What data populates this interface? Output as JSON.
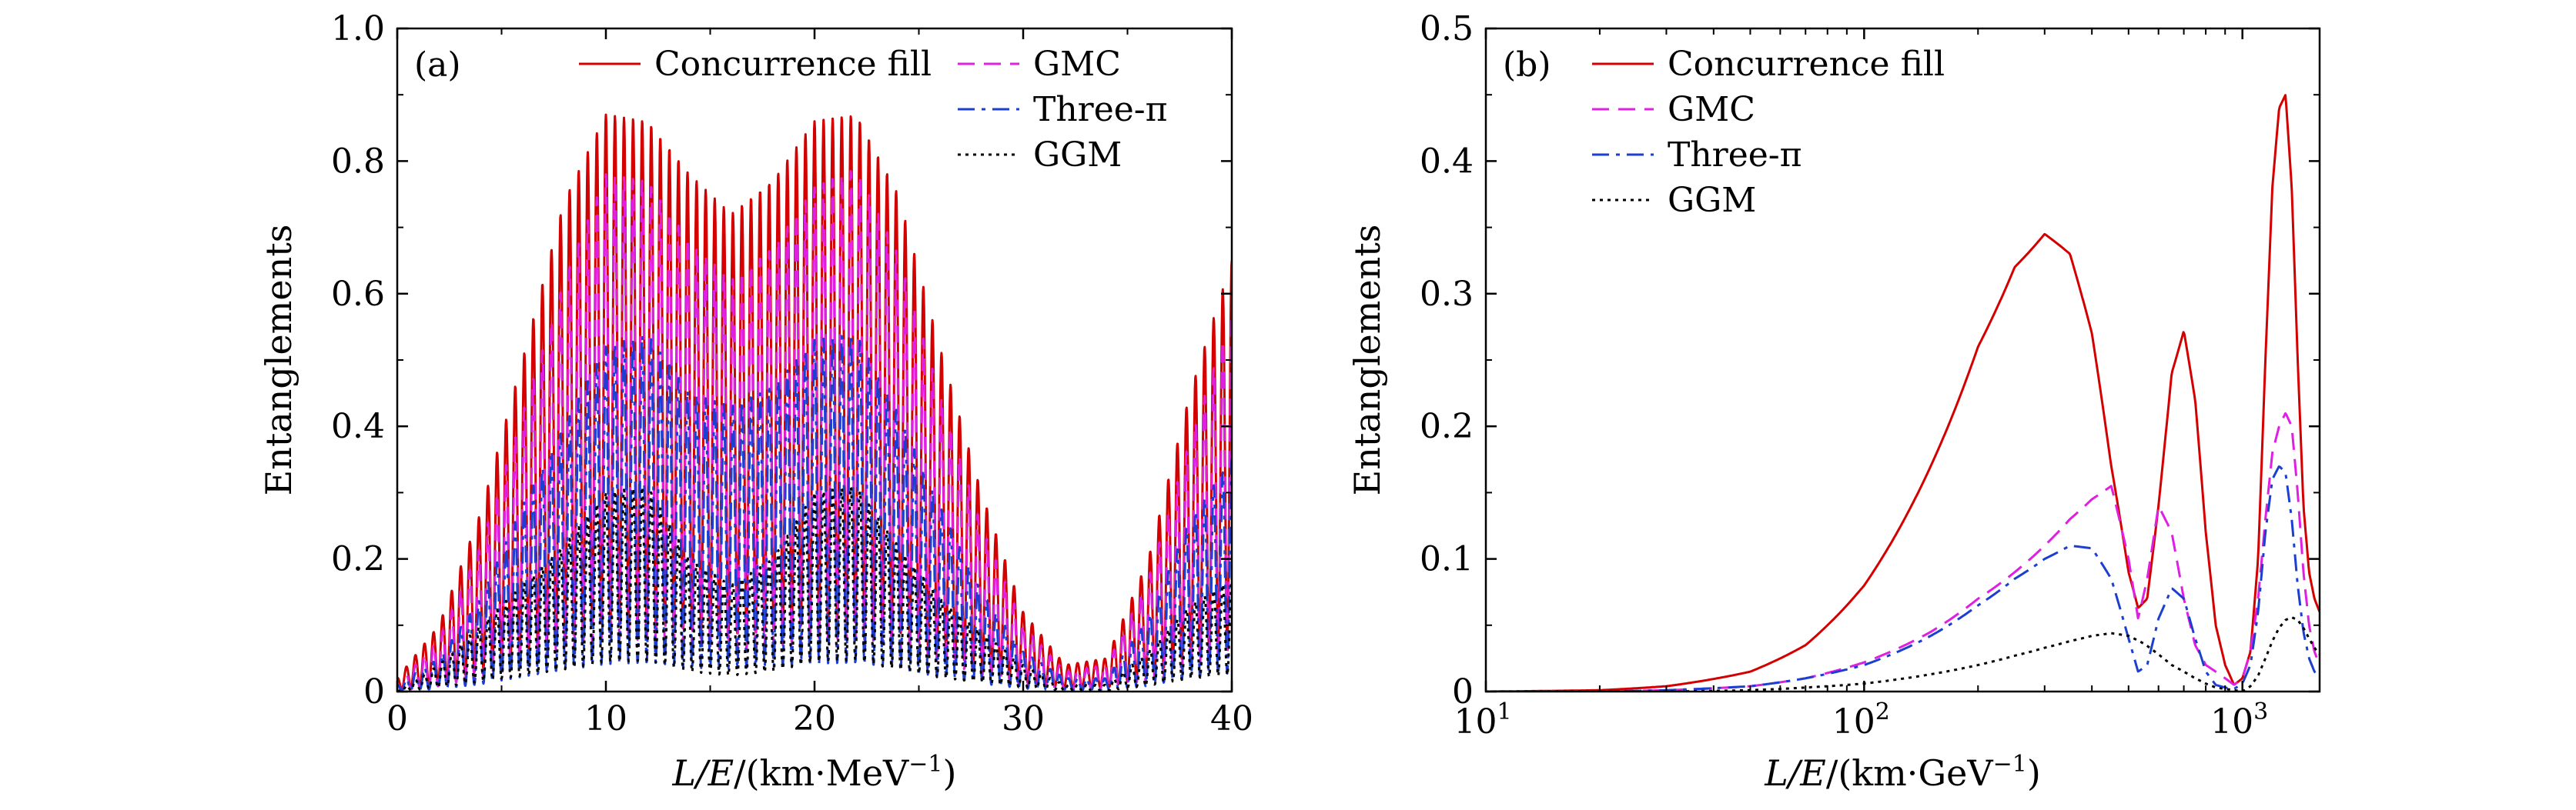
{
  "chart_data": [
    {
      "type": "line",
      "panel_label": "(a)",
      "xscale": "linear",
      "xlim": [
        0,
        40
      ],
      "ylim": [
        0,
        1.0
      ],
      "xticks": [
        0,
        10,
        20,
        30,
        40
      ],
      "xtick_labels": [
        "0",
        "10",
        "20",
        "30",
        "40"
      ],
      "yticks": [
        0,
        0.2,
        0.4,
        0.6,
        0.8,
        1.0
      ],
      "ytick_labels": [
        "0",
        "0.2",
        "0.4",
        "0.6",
        "0.8",
        "1.0"
      ],
      "ylabel": "Entanglements",
      "xlabel": {
        "italic": "L/E",
        "rest": "/(km·MeV",
        "sup": "−1",
        "close": ")"
      },
      "legend_position": "top",
      "series": [
        {
          "name": "Concurrence fill",
          "color": "#d40000",
          "style": "solid",
          "amp": 0.88,
          "x": [
            0,
            2,
            4,
            6,
            8,
            10,
            12,
            14,
            16,
            18,
            20,
            22,
            24,
            26,
            28,
            30,
            32,
            34,
            36,
            38,
            40
          ],
          "y": [
            0.02,
            0.1,
            0.27,
            0.5,
            0.74,
            0.87,
            0.86,
            0.78,
            0.72,
            0.77,
            0.86,
            0.87,
            0.75,
            0.52,
            0.3,
            0.12,
            0.04,
            0.05,
            0.2,
            0.45,
            0.65
          ]
        },
        {
          "name": "GMC",
          "color": "#e020e0",
          "style": "dashed",
          "amp": 0.9,
          "x": [
            0,
            2,
            4,
            6,
            8,
            10,
            12,
            14,
            16,
            18,
            20,
            22,
            24,
            26,
            28,
            30,
            32,
            34,
            36,
            38,
            40
          ],
          "y": [
            0.01,
            0.08,
            0.22,
            0.42,
            0.62,
            0.78,
            0.77,
            0.68,
            0.62,
            0.67,
            0.76,
            0.79,
            0.66,
            0.45,
            0.25,
            0.1,
            0.03,
            0.04,
            0.17,
            0.38,
            0.57
          ]
        },
        {
          "name": "Three-π",
          "color": "#1c3fd0",
          "style": "dashdot",
          "amp": 0.92,
          "x": [
            0,
            2,
            4,
            6,
            8,
            10,
            12,
            14,
            16,
            18,
            20,
            22,
            24,
            26,
            28,
            30,
            32,
            34,
            36,
            38,
            40
          ],
          "y": [
            0.01,
            0.05,
            0.14,
            0.28,
            0.4,
            0.52,
            0.54,
            0.45,
            0.43,
            0.46,
            0.53,
            0.54,
            0.42,
            0.28,
            0.15,
            0.06,
            0.02,
            0.02,
            0.11,
            0.26,
            0.35
          ]
        },
        {
          "name": "GGM",
          "color": "#000000",
          "style": "dotted",
          "amp": 0.85,
          "x": [
            0,
            2,
            4,
            6,
            8,
            10,
            12,
            14,
            16,
            18,
            20,
            22,
            24,
            26,
            28,
            30,
            32,
            34,
            36,
            38,
            40
          ],
          "y": [
            0.0,
            0.04,
            0.1,
            0.16,
            0.22,
            0.3,
            0.31,
            0.2,
            0.16,
            0.2,
            0.3,
            0.31,
            0.22,
            0.14,
            0.09,
            0.04,
            0.01,
            0.01,
            0.06,
            0.13,
            0.17
          ]
        }
      ]
    },
    {
      "type": "line",
      "panel_label": "(b)",
      "xscale": "log",
      "xlim": [
        10,
        1600
      ],
      "ylim": [
        0,
        0.5
      ],
      "xticks": [
        10,
        100,
        1000
      ],
      "xtick_labels": [
        {
          "base": "10",
          "exp": "1"
        },
        {
          "base": "10",
          "exp": "2"
        },
        {
          "base": "10",
          "exp": "3"
        }
      ],
      "yticks": [
        0,
        0.1,
        0.2,
        0.3,
        0.4,
        0.5
      ],
      "ytick_labels": [
        "0",
        "0.1",
        "0.2",
        "0.3",
        "0.4",
        "0.5"
      ],
      "ylabel": "Entanglements",
      "xlabel": {
        "italic": "L/E",
        "rest": "/(km·GeV",
        "sup": "−1",
        "close": ")"
      },
      "legend_position": "top-left",
      "series": [
        {
          "name": "Concurrence fill",
          "color": "#d40000",
          "style": "solid",
          "x": [
            10,
            20,
            30,
            50,
            70,
            100,
            150,
            200,
            250,
            300,
            350,
            400,
            450,
            500,
            530,
            560,
            600,
            650,
            700,
            750,
            800,
            850,
            900,
            950,
            1000,
            1050,
            1100,
            1150,
            1200,
            1250,
            1300,
            1350,
            1400,
            1450,
            1500,
            1550,
            1600
          ],
          "y": [
            0.0,
            0.001,
            0.004,
            0.015,
            0.035,
            0.08,
            0.17,
            0.26,
            0.32,
            0.345,
            0.33,
            0.27,
            0.17,
            0.09,
            0.063,
            0.07,
            0.14,
            0.24,
            0.272,
            0.22,
            0.12,
            0.05,
            0.02,
            0.005,
            0.01,
            0.03,
            0.1,
            0.25,
            0.38,
            0.44,
            0.45,
            0.38,
            0.25,
            0.14,
            0.09,
            0.07,
            0.06
          ]
        },
        {
          "name": "GMC",
          "color": "#e020e0",
          "style": "dashed",
          "x": [
            10,
            20,
            30,
            50,
            70,
            100,
            150,
            200,
            250,
            300,
            350,
            400,
            450,
            500,
            530,
            560,
            600,
            650,
            700,
            750,
            800,
            850,
            900,
            950,
            1000,
            1050,
            1100,
            1150,
            1200,
            1250,
            1300,
            1350,
            1400,
            1450,
            1500,
            1550,
            1600
          ],
          "y": [
            0.0,
            0.0,
            0.001,
            0.004,
            0.01,
            0.022,
            0.045,
            0.07,
            0.09,
            0.11,
            0.13,
            0.145,
            0.155,
            0.1,
            0.055,
            0.085,
            0.14,
            0.12,
            0.07,
            0.035,
            0.02,
            0.015,
            0.01,
            0.005,
            0.01,
            0.03,
            0.07,
            0.13,
            0.18,
            0.2,
            0.21,
            0.2,
            0.15,
            0.09,
            0.05,
            0.03,
            0.02
          ]
        },
        {
          "name": "Three-π",
          "color": "#1c3fd0",
          "style": "dashdot",
          "x": [
            10,
            20,
            30,
            50,
            70,
            100,
            150,
            200,
            250,
            300,
            350,
            400,
            450,
            500,
            530,
            560,
            600,
            650,
            700,
            750,
            800,
            850,
            900,
            950,
            1000,
            1050,
            1100,
            1150,
            1200,
            1250,
            1300,
            1350,
            1400,
            1450,
            1500,
            1550,
            1600
          ],
          "y": [
            0.0,
            0.0,
            0.001,
            0.004,
            0.01,
            0.02,
            0.042,
            0.065,
            0.085,
            0.1,
            0.11,
            0.108,
            0.085,
            0.04,
            0.015,
            0.02,
            0.055,
            0.078,
            0.07,
            0.04,
            0.015,
            0.005,
            0.003,
            0.002,
            0.006,
            0.02,
            0.06,
            0.12,
            0.16,
            0.17,
            0.165,
            0.13,
            0.08,
            0.045,
            0.025,
            0.015,
            0.01
          ]
        },
        {
          "name": "GGM",
          "color": "#000000",
          "style": "dotted",
          "x": [
            10,
            20,
            30,
            50,
            70,
            100,
            150,
            200,
            250,
            300,
            350,
            400,
            450,
            500,
            550,
            600,
            650,
            700,
            750,
            800,
            850,
            900,
            950,
            1000,
            1050,
            1100,
            1150,
            1200,
            1250,
            1300,
            1350,
            1400,
            1450,
            1500,
            1550,
            1600
          ],
          "y": [
            0.0,
            0.0,
            0.0,
            0.001,
            0.003,
            0.006,
            0.013,
            0.02,
            0.027,
            0.033,
            0.038,
            0.042,
            0.044,
            0.042,
            0.036,
            0.028,
            0.02,
            0.015,
            0.01,
            0.006,
            0.003,
            0.002,
            0.001,
            0.0,
            0.004,
            0.012,
            0.025,
            0.038,
            0.048,
            0.054,
            0.056,
            0.054,
            0.048,
            0.04,
            0.033,
            0.028
          ]
        }
      ]
    }
  ]
}
